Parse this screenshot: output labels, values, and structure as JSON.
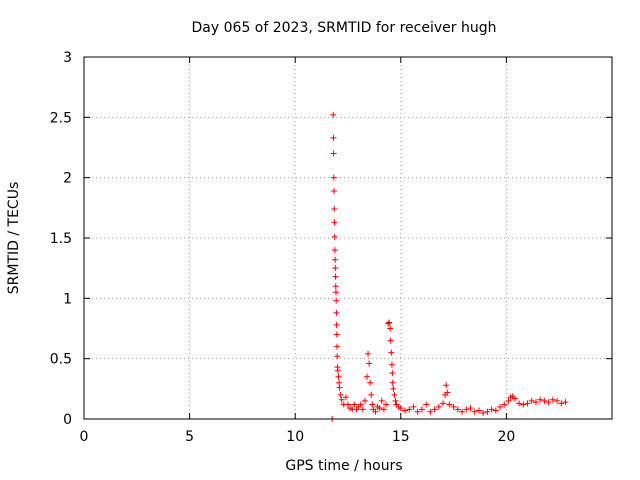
{
  "chart_data": {
    "type": "scatter",
    "title": "Day 065 of 2023, SRMTID for receiver hugh",
    "xlabel": "GPS time / hours",
    "ylabel": "SRMTID / TECUs",
    "xlim": [
      0,
      25
    ],
    "ylim": [
      0,
      3
    ],
    "x_ticks": [
      0,
      5,
      10,
      15,
      20
    ],
    "x_tick_labels": [
      "0",
      "5",
      "10",
      "15",
      "20"
    ],
    "y_ticks": [
      0,
      0.5,
      1,
      1.5,
      2,
      2.5,
      3
    ],
    "y_tick_labels": [
      "0",
      "0.5",
      "1",
      "1.5",
      "2",
      "2.5",
      "3"
    ],
    "grid": true,
    "marker": "plus",
    "series": [
      {
        "name": "SRMTID",
        "color": "#ff0000",
        "x": [
          11.75,
          11.8,
          11.81,
          11.82,
          11.83,
          11.84,
          11.85,
          11.86,
          11.87,
          11.88,
          11.89,
          11.9,
          11.91,
          11.92,
          11.93,
          11.94,
          11.95,
          11.96,
          11.97,
          11.98,
          11.99,
          12.0,
          12.02,
          12.05,
          12.08,
          12.1,
          12.15,
          12.2,
          12.3,
          12.4,
          12.5,
          12.6,
          12.7,
          12.8,
          12.9,
          13.0,
          13.1,
          13.2,
          13.3,
          13.4,
          13.45,
          13.5,
          13.55,
          13.6,
          13.65,
          13.7,
          13.8,
          13.9,
          14.0,
          14.1,
          14.2,
          14.3,
          14.4,
          14.45,
          14.5,
          14.52,
          14.55,
          14.58,
          14.6,
          14.62,
          14.65,
          14.7,
          14.75,
          14.8,
          14.9,
          15.0,
          15.2,
          15.4,
          15.6,
          15.8,
          16.0,
          16.2,
          16.4,
          16.6,
          16.8,
          17.0,
          17.1,
          17.15,
          17.2,
          17.3,
          17.5,
          17.7,
          17.9,
          18.1,
          18.3,
          18.5,
          18.7,
          18.9,
          19.1,
          19.3,
          19.5,
          19.7,
          19.9,
          20.1,
          20.2,
          20.3,
          20.4,
          20.6,
          20.8,
          21.0,
          21.2,
          21.4,
          21.6,
          21.8,
          22.0,
          22.2,
          22.4,
          22.6,
          22.8
        ],
        "y": [
          0.0,
          2.52,
          2.33,
          2.2,
          2.0,
          1.89,
          1.74,
          1.63,
          1.51,
          1.4,
          1.32,
          1.25,
          1.18,
          1.1,
          1.05,
          0.98,
          0.88,
          0.78,
          0.7,
          0.6,
          0.52,
          0.43,
          0.4,
          0.35,
          0.3,
          0.26,
          0.2,
          0.16,
          0.12,
          0.18,
          0.12,
          0.09,
          0.08,
          0.12,
          0.08,
          0.1,
          0.12,
          0.08,
          0.15,
          0.35,
          0.54,
          0.46,
          0.3,
          0.2,
          0.12,
          0.08,
          0.06,
          0.1,
          0.09,
          0.15,
          0.08,
          0.12,
          0.79,
          0.8,
          0.75,
          0.65,
          0.55,
          0.45,
          0.38,
          0.3,
          0.25,
          0.2,
          0.15,
          0.12,
          0.1,
          0.09,
          0.07,
          0.08,
          0.1,
          0.06,
          0.08,
          0.12,
          0.06,
          0.08,
          0.1,
          0.13,
          0.2,
          0.28,
          0.22,
          0.12,
          0.1,
          0.08,
          0.06,
          0.08,
          0.09,
          0.06,
          0.07,
          0.05,
          0.06,
          0.08,
          0.07,
          0.1,
          0.12,
          0.15,
          0.18,
          0.19,
          0.17,
          0.13,
          0.12,
          0.13,
          0.15,
          0.14,
          0.16,
          0.15,
          0.14,
          0.16,
          0.15,
          0.13,
          0.14
        ]
      }
    ]
  }
}
